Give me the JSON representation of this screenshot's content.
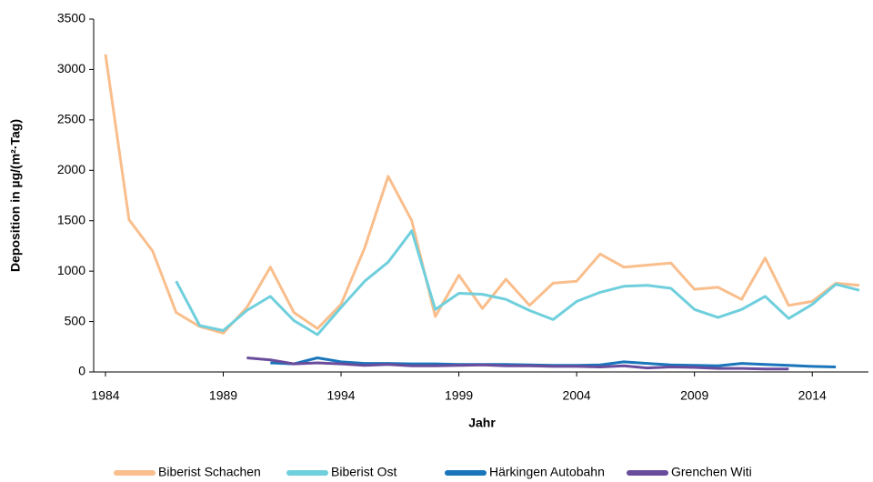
{
  "chart_data": {
    "type": "line",
    "x": [
      1984,
      1985,
      1986,
      1987,
      1988,
      1989,
      1990,
      1991,
      1992,
      1993,
      1994,
      1995,
      1996,
      1997,
      1998,
      1999,
      2000,
      2001,
      2002,
      2003,
      2004,
      2005,
      2006,
      2007,
      2008,
      2009,
      2010,
      2011,
      2012,
      2013,
      2014,
      2015,
      2016
    ],
    "series": [
      {
        "name": "Biberist Schachen",
        "color": "#f9be8c",
        "values": [
          3150,
          1510,
          1200,
          590,
          450,
          385,
          640,
          1040,
          590,
          430,
          670,
          1230,
          1940,
          1500,
          550,
          960,
          630,
          920,
          660,
          880,
          900,
          1170,
          1040,
          1060,
          1080,
          820,
          840,
          720,
          1130,
          660,
          700,
          880,
          860
        ]
      },
      {
        "name": "Biberist Ost",
        "color": "#6fcfdc",
        "values": [
          null,
          null,
          null,
          900,
          460,
          410,
          610,
          750,
          510,
          370,
          640,
          900,
          1090,
          1400,
          620,
          780,
          770,
          720,
          610,
          520,
          700,
          790,
          850,
          860,
          830,
          620,
          540,
          620,
          750,
          530,
          670,
          870,
          810
        ]
      },
      {
        "name": "Härkingen Autobahn",
        "color": "#1a75bb",
        "values": [
          null,
          null,
          null,
          null,
          null,
          null,
          null,
          90,
          80,
          140,
          100,
          85,
          85,
          80,
          80,
          75,
          75,
          75,
          70,
          65,
          65,
          70,
          100,
          85,
          70,
          65,
          60,
          85,
          75,
          65,
          55,
          50,
          null
        ]
      },
      {
        "name": "Grenchen Witi",
        "color": "#6a4c9c",
        "values": [
          null,
          null,
          null,
          null,
          null,
          null,
          140,
          120,
          80,
          90,
          80,
          65,
          75,
          60,
          60,
          65,
          70,
          60,
          60,
          55,
          55,
          50,
          60,
          40,
          50,
          45,
          35,
          35,
          30,
          30,
          null,
          null,
          null
        ]
      }
    ],
    "xlabel": "Jahr",
    "ylabel": "Deposition in µg/(m²·Tag)",
    "xlim": [
      1983.5,
      2016.5
    ],
    "xticks": [
      1984,
      1989,
      1994,
      1999,
      2004,
      2009,
      2014
    ],
    "ylim": [
      0,
      3500
    ],
    "yticks": [
      0,
      500,
      1000,
      1500,
      2000,
      2500,
      3000,
      3500
    ],
    "legend": "bottom"
  }
}
